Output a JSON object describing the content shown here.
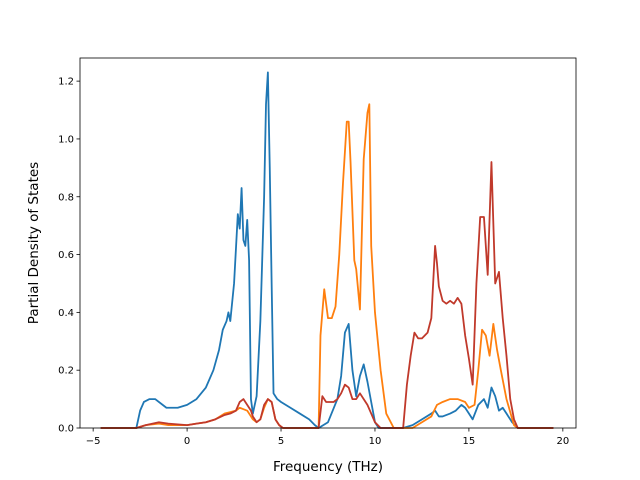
{
  "chart_data": {
    "type": "line",
    "title": "",
    "xlabel": "Frequency (THz)",
    "ylabel": "Partial Density of States",
    "xlim": [
      -5.7,
      20.7
    ],
    "ylim": [
      0,
      1.28
    ],
    "xticks": [
      -5,
      0,
      5,
      10,
      15,
      20
    ],
    "yticks": [
      0.0,
      0.2,
      0.4,
      0.6,
      0.8,
      1.0,
      1.2
    ],
    "xtick_labels": [
      "−5",
      "0",
      "5",
      "10",
      "15",
      "20"
    ],
    "ytick_labels": [
      "0.0",
      "0.2",
      "0.4",
      "0.6",
      "0.8",
      "1.0",
      "1.2"
    ],
    "grid": false,
    "series": [
      {
        "name": "blue",
        "color": "#1f77b4",
        "x": [
          -4.6,
          -2.7,
          -2.5,
          -2.3,
          -2.0,
          -1.7,
          -1.3,
          -1.1,
          -0.8,
          -0.5,
          0,
          0.5,
          1.0,
          1.4,
          1.7,
          1.9,
          2.1,
          2.2,
          2.3,
          2.5,
          2.6,
          2.7,
          2.8,
          2.9,
          3.0,
          3.1,
          3.2,
          3.3,
          3.4,
          3.5,
          3.7,
          3.9,
          4.1,
          4.2,
          4.3,
          4.4,
          4.5,
          4.6,
          4.7,
          4.8,
          5.0,
          5.5,
          6.0,
          6.5,
          6.8,
          7.0,
          7.5,
          8.0,
          8.2,
          8.4,
          8.6,
          8.8,
          9.0,
          9.2,
          9.4,
          9.6,
          9.8,
          10.0,
          10.2,
          10.5,
          11.0,
          11.5,
          12.0,
          12.5,
          13.0,
          13.2,
          13.4,
          13.6,
          14.0,
          14.3,
          14.6,
          14.8,
          15.0,
          15.2,
          15.5,
          15.8,
          16.0,
          16.2,
          16.4,
          16.6,
          16.8,
          17.0,
          17.3,
          17.6,
          18.0,
          19.0,
          19.5
        ],
        "values": [
          0,
          0,
          0.06,
          0.09,
          0.1,
          0.1,
          0.08,
          0.07,
          0.07,
          0.07,
          0.08,
          0.1,
          0.14,
          0.2,
          0.27,
          0.34,
          0.37,
          0.4,
          0.37,
          0.5,
          0.62,
          0.74,
          0.69,
          0.83,
          0.65,
          0.63,
          0.72,
          0.58,
          0.1,
          0.05,
          0.11,
          0.37,
          0.8,
          1.12,
          1.23,
          0.9,
          0.5,
          0.12,
          0.11,
          0.1,
          0.09,
          0.07,
          0.05,
          0.03,
          0.01,
          0,
          0.02,
          0.1,
          0.18,
          0.33,
          0.36,
          0.2,
          0.11,
          0.18,
          0.22,
          0.16,
          0.09,
          0.02,
          0,
          0,
          0,
          0,
          0.01,
          0.03,
          0.05,
          0.06,
          0.04,
          0.04,
          0.05,
          0.06,
          0.08,
          0.07,
          0.05,
          0.03,
          0.08,
          0.1,
          0.07,
          0.14,
          0.11,
          0.06,
          0.07,
          0.05,
          0.02,
          0,
          0,
          0,
          0
        ]
      },
      {
        "name": "orange",
        "color": "#ff7f0e",
        "x": [
          -4.6,
          -2.7,
          -2.2,
          -1.5,
          -1.0,
          0,
          0.5,
          1.0,
          1.5,
          2.0,
          2.3,
          2.6,
          2.8,
          3.0,
          3.2,
          3.4,
          3.5,
          3.7,
          3.9,
          4.1,
          4.3,
          4.5,
          4.7,
          4.9,
          5.1,
          5.5,
          6.0,
          6.5,
          7.0,
          7.1,
          7.3,
          7.5,
          7.7,
          7.9,
          8.1,
          8.3,
          8.5,
          8.6,
          8.7,
          8.9,
          9.0,
          9.2,
          9.4,
          9.6,
          9.7,
          9.8,
          10.0,
          10.3,
          10.6,
          11.0,
          11.5,
          12.0,
          12.5,
          13.0,
          13.3,
          13.6,
          14.0,
          14.4,
          14.8,
          15.0,
          15.3,
          15.5,
          15.7,
          15.9,
          16.1,
          16.3,
          16.5,
          16.7,
          17.0,
          17.4,
          17.6,
          18.0,
          19.0,
          19.5
        ],
        "values": [
          0,
          0,
          0.01,
          0.015,
          0.01,
          0.01,
          0.015,
          0.02,
          0.03,
          0.05,
          0.055,
          0.06,
          0.07,
          0.065,
          0.06,
          0.04,
          0.03,
          0.02,
          0.03,
          0.07,
          0.1,
          0.09,
          0.03,
          0.01,
          0,
          0,
          0,
          0,
          0,
          0.32,
          0.48,
          0.38,
          0.38,
          0.42,
          0.6,
          0.85,
          1.06,
          1.06,
          0.92,
          0.58,
          0.55,
          0.41,
          0.93,
          1.09,
          1.12,
          0.63,
          0.4,
          0.2,
          0.05,
          0,
          0,
          0,
          0.02,
          0.04,
          0.08,
          0.09,
          0.1,
          0.1,
          0.09,
          0.07,
          0.08,
          0.2,
          0.34,
          0.32,
          0.25,
          0.36,
          0.27,
          0.2,
          0.1,
          0.01,
          0,
          0,
          0,
          0
        ]
      },
      {
        "name": "red",
        "color": "#c0392b",
        "x": [
          -4.6,
          -2.7,
          -2.2,
          -1.5,
          -1.0,
          0,
          0.5,
          1.0,
          1.5,
          2.0,
          2.3,
          2.6,
          2.8,
          3.0,
          3.2,
          3.4,
          3.5,
          3.7,
          3.9,
          4.1,
          4.3,
          4.5,
          4.7,
          4.9,
          5.1,
          5.5,
          6.0,
          6.5,
          7.0,
          7.2,
          7.4,
          7.6,
          7.8,
          8.0,
          8.2,
          8.4,
          8.6,
          8.8,
          9.0,
          9.2,
          9.4,
          9.6,
          9.8,
          10.0,
          10.3,
          10.6,
          11.0,
          11.5,
          11.7,
          11.9,
          12.1,
          12.3,
          12.5,
          12.8,
          13.0,
          13.2,
          13.3,
          13.4,
          13.6,
          13.8,
          14.0,
          14.2,
          14.4,
          14.6,
          14.8,
          15.0,
          15.2,
          15.4,
          15.6,
          15.8,
          16.0,
          16.2,
          16.4,
          16.6,
          16.8,
          17.0,
          17.2,
          17.4,
          17.6,
          18.0,
          19.0,
          19.5
        ],
        "values": [
          0,
          0,
          0.01,
          0.02,
          0.015,
          0.01,
          0.015,
          0.02,
          0.03,
          0.045,
          0.05,
          0.06,
          0.09,
          0.1,
          0.08,
          0.06,
          0.04,
          0.02,
          0.03,
          0.08,
          0.1,
          0.09,
          0.03,
          0.01,
          0,
          0,
          0,
          0,
          0,
          0.11,
          0.09,
          0.09,
          0.09,
          0.1,
          0.12,
          0.15,
          0.14,
          0.1,
          0.1,
          0.12,
          0.1,
          0.08,
          0.05,
          0.02,
          0,
          0,
          0,
          0,
          0.15,
          0.25,
          0.33,
          0.31,
          0.31,
          0.33,
          0.38,
          0.63,
          0.57,
          0.49,
          0.44,
          0.43,
          0.44,
          0.43,
          0.45,
          0.43,
          0.32,
          0.24,
          0.15,
          0.5,
          0.73,
          0.73,
          0.53,
          0.92,
          0.5,
          0.54,
          0.38,
          0.25,
          0.1,
          0.03,
          0,
          0,
          0,
          0
        ]
      }
    ]
  }
}
